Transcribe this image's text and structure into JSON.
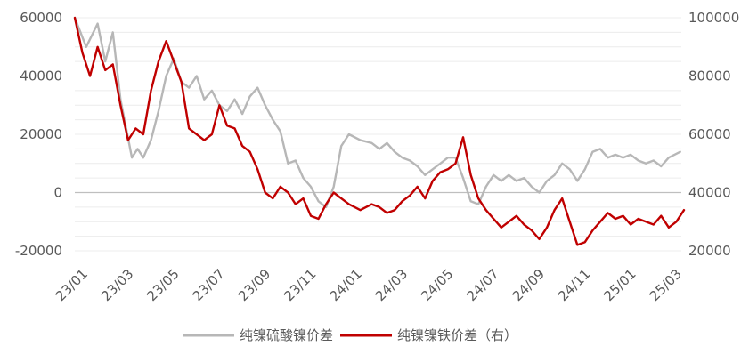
{
  "chart_data": {
    "type": "line",
    "title": "",
    "xlabel": "",
    "ylabel_left": "",
    "ylabel_right": "",
    "x_tick_labels": [
      "23/01",
      "23/03",
      "23/05",
      "23/07",
      "23/09",
      "23/11",
      "24/01",
      "24/03",
      "24/05",
      "24/07",
      "24/09",
      "24/11",
      "25/01",
      "25/03"
    ],
    "y_left": {
      "min": -20000,
      "max": 60000,
      "ticks": [
        -20000,
        0,
        20000,
        40000,
        60000
      ]
    },
    "y_right": {
      "min": 20000,
      "max": 100000,
      "ticks": [
        20000,
        40000,
        60000,
        80000,
        100000
      ]
    },
    "grid": "horizontal",
    "legend_position": "bottom",
    "series": [
      {
        "name": "纯镍硫酸镍价差",
        "axis": "left",
        "color": "#b7b7b7",
        "points": [
          [
            "23/01",
            60000
          ],
          [
            "23/01",
            50000
          ],
          [
            "23/02",
            58000
          ],
          [
            "23/02",
            45000
          ],
          [
            "23/02",
            55000
          ],
          [
            "23/03",
            32000
          ],
          [
            "23/03",
            22000
          ],
          [
            "23/03",
            12000
          ],
          [
            "23/03",
            15000
          ],
          [
            "23/04",
            12000
          ],
          [
            "23/04",
            18000
          ],
          [
            "23/04",
            28000
          ],
          [
            "23/05",
            40000
          ],
          [
            "23/05",
            46000
          ],
          [
            "23/05",
            38000
          ],
          [
            "23/06",
            36000
          ],
          [
            "23/06",
            40000
          ],
          [
            "23/06",
            32000
          ],
          [
            "23/07",
            35000
          ],
          [
            "23/07",
            30000
          ],
          [
            "23/07",
            28000
          ],
          [
            "23/08",
            32000
          ],
          [
            "23/08",
            27000
          ],
          [
            "23/08",
            33000
          ],
          [
            "23/09",
            36000
          ],
          [
            "23/09",
            30000
          ],
          [
            "23/09",
            25000
          ],
          [
            "23/10",
            21000
          ],
          [
            "23/10",
            10000
          ],
          [
            "23/10",
            11000
          ],
          [
            "23/11",
            5000
          ],
          [
            "23/11",
            2000
          ],
          [
            "23/11",
            -3000
          ],
          [
            "23/12",
            -5000
          ],
          [
            "23/12",
            2000
          ],
          [
            "23/12",
            16000
          ],
          [
            "24/01",
            20000
          ],
          [
            "24/01",
            18000
          ],
          [
            "24/02",
            17000
          ],
          [
            "24/02",
            15000
          ],
          [
            "24/02",
            17000
          ],
          [
            "24/03",
            14000
          ],
          [
            "24/03",
            12000
          ],
          [
            "24/03",
            11000
          ],
          [
            "24/04",
            9000
          ],
          [
            "24/04",
            6000
          ],
          [
            "24/04",
            8000
          ],
          [
            "24/05",
            10000
          ],
          [
            "24/05",
            12000
          ],
          [
            "24/05",
            12000
          ],
          [
            "24/06",
            5000
          ],
          [
            "24/06",
            -3000
          ],
          [
            "24/06",
            -4000
          ],
          [
            "24/07",
            2000
          ],
          [
            "24/07",
            6000
          ],
          [
            "24/07",
            4000
          ],
          [
            "24/08",
            6000
          ],
          [
            "24/08",
            4000
          ],
          [
            "24/08",
            5000
          ],
          [
            "24/09",
            2000
          ],
          [
            "24/09",
            0
          ],
          [
            "24/09",
            4000
          ],
          [
            "24/10",
            6000
          ],
          [
            "24/10",
            10000
          ],
          [
            "24/10",
            8000
          ],
          [
            "24/11",
            4000
          ],
          [
            "24/11",
            8000
          ],
          [
            "24/11",
            14000
          ],
          [
            "24/12",
            15000
          ],
          [
            "24/12",
            12000
          ],
          [
            "24/12",
            13000
          ],
          [
            "25/01",
            12000
          ],
          [
            "25/01",
            13000
          ],
          [
            "25/01",
            11000
          ],
          [
            "25/02",
            10000
          ],
          [
            "25/02",
            11000
          ],
          [
            "25/02",
            9000
          ],
          [
            "25/03",
            12000
          ],
          [
            "25/03",
            14000
          ]
        ]
      },
      {
        "name": "纯镍镍铁价差（右）",
        "axis": "right",
        "color": "#c00000",
        "points": [
          [
            "23/01",
            100000
          ],
          [
            "23/01",
            88000
          ],
          [
            "23/01",
            80000
          ],
          [
            "23/02",
            90000
          ],
          [
            "23/02",
            82000
          ],
          [
            "23/02",
            84000
          ],
          [
            "23/03",
            70000
          ],
          [
            "23/03",
            58000
          ],
          [
            "23/03",
            62000
          ],
          [
            "23/04",
            60000
          ],
          [
            "23/04",
            75000
          ],
          [
            "23/04",
            85000
          ],
          [
            "23/05",
            92000
          ],
          [
            "23/05",
            85000
          ],
          [
            "23/05",
            78000
          ],
          [
            "23/06",
            62000
          ],
          [
            "23/06",
            60000
          ],
          [
            "23/06",
            58000
          ],
          [
            "23/07",
            60000
          ],
          [
            "23/07",
            70000
          ],
          [
            "23/07",
            63000
          ],
          [
            "23/08",
            62000
          ],
          [
            "23/08",
            56000
          ],
          [
            "23/08",
            54000
          ],
          [
            "23/09",
            48000
          ],
          [
            "23/09",
            40000
          ],
          [
            "23/09",
            38000
          ],
          [
            "23/10",
            42000
          ],
          [
            "23/10",
            40000
          ],
          [
            "23/10",
            36000
          ],
          [
            "23/11",
            38000
          ],
          [
            "23/11",
            32000
          ],
          [
            "23/11",
            31000
          ],
          [
            "23/12",
            36000
          ],
          [
            "23/12",
            40000
          ],
          [
            "23/12",
            38000
          ],
          [
            "24/01",
            36000
          ],
          [
            "24/01",
            34000
          ],
          [
            "24/02",
            36000
          ],
          [
            "24/02",
            35000
          ],
          [
            "24/02",
            33000
          ],
          [
            "24/03",
            34000
          ],
          [
            "24/03",
            37000
          ],
          [
            "24/03",
            39000
          ],
          [
            "24/04",
            42000
          ],
          [
            "24/04",
            38000
          ],
          [
            "24/04",
            44000
          ],
          [
            "24/05",
            47000
          ],
          [
            "24/05",
            48000
          ],
          [
            "24/05",
            50000
          ],
          [
            "24/06",
            59000
          ],
          [
            "24/06",
            46000
          ],
          [
            "24/06",
            38000
          ],
          [
            "24/07",
            34000
          ],
          [
            "24/07",
            31000
          ],
          [
            "24/07",
            28000
          ],
          [
            "24/08",
            30000
          ],
          [
            "24/08",
            32000
          ],
          [
            "24/08",
            29000
          ],
          [
            "24/09",
            27000
          ],
          [
            "24/09",
            24000
          ],
          [
            "24/09",
            28000
          ],
          [
            "24/10",
            34000
          ],
          [
            "24/10",
            38000
          ],
          [
            "24/10",
            30000
          ],
          [
            "24/11",
            22000
          ],
          [
            "24/11",
            23000
          ],
          [
            "24/11",
            27000
          ],
          [
            "24/12",
            30000
          ],
          [
            "24/12",
            33000
          ],
          [
            "24/12",
            31000
          ],
          [
            "25/01",
            32000
          ],
          [
            "25/01",
            29000
          ],
          [
            "25/01",
            31000
          ],
          [
            "25/02",
            30000
          ],
          [
            "25/02",
            29000
          ],
          [
            "25/02",
            32000
          ],
          [
            "25/03",
            28000
          ],
          [
            "25/03",
            30000
          ],
          [
            "25/03",
            34000
          ]
        ]
      }
    ]
  }
}
